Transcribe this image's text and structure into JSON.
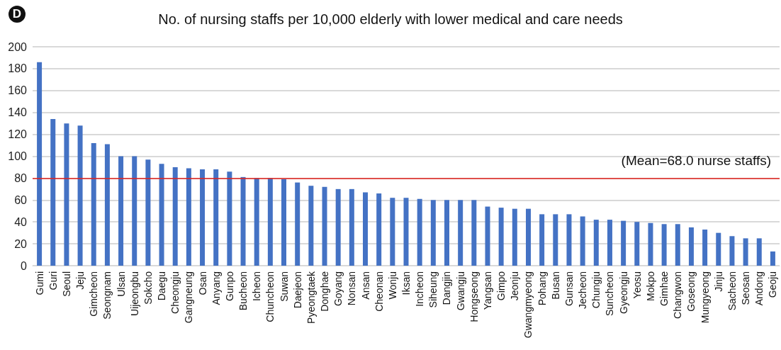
{
  "chart_data": {
    "type": "bar",
    "title": "No. of nursing staffs per 10,000 elderly with lower medical and care needs",
    "annotations": [
      "D",
      "(Mean=68.0 nurse staffs)"
    ],
    "categories": [
      "Gumi",
      "Guri",
      "Seoul",
      "Jeju",
      "Gimcheon",
      "Seongnam",
      "Ulsan",
      "Uijeongbu",
      "Sokcho",
      "Daegu",
      "Cheongju",
      "Gangneung",
      "Osan",
      "Anyang",
      "Gunpo",
      "Bucheon",
      "Icheon",
      "Chuncheon",
      "Suwan",
      "Daejeon",
      "Pyeongtaek",
      "Donghae",
      "Goyang",
      "Nonsan",
      "Ansan",
      "Cheonan",
      "Wonju",
      "Iksan",
      "Incheon",
      "Siheung",
      "Dangjin",
      "Gwangju",
      "Hongseong",
      "Yangsan",
      "Gimpo",
      "Jeonju",
      "Gwangmyeong",
      "Pohang",
      "Busan",
      "Gunsan",
      "Jecheon",
      "Chungju",
      "Suncheon",
      "Gyeongju",
      "Yeosu",
      "Mokpo",
      "Gimhae",
      "Changwon",
      "Goseong",
      "Mungyeong",
      "Jinju",
      "Sacheon",
      "Seosan",
      "Andong",
      "Geoju"
    ],
    "values": [
      186,
      134,
      130,
      128,
      112,
      111,
      100,
      100,
      97,
      93,
      90,
      89,
      88,
      88,
      86,
      81,
      80,
      80,
      79,
      76,
      73,
      72,
      70,
      70,
      67,
      66,
      62,
      62,
      61,
      60,
      60,
      60,
      60,
      54,
      53,
      52,
      52,
      47,
      47,
      47,
      45,
      42,
      42,
      41,
      40,
      39,
      38,
      38,
      35,
      33,
      30,
      27,
      25,
      25,
      13
    ],
    "color": "#4472c4",
    "ylim": [
      0,
      200
    ],
    "yticks": [
      0,
      20,
      40,
      60,
      80,
      100,
      120,
      140,
      160,
      180,
      200
    ],
    "grid": "y",
    "ref_lines": [
      {
        "axis": "y",
        "value": 80,
        "color": "#e0201b"
      }
    ]
  }
}
